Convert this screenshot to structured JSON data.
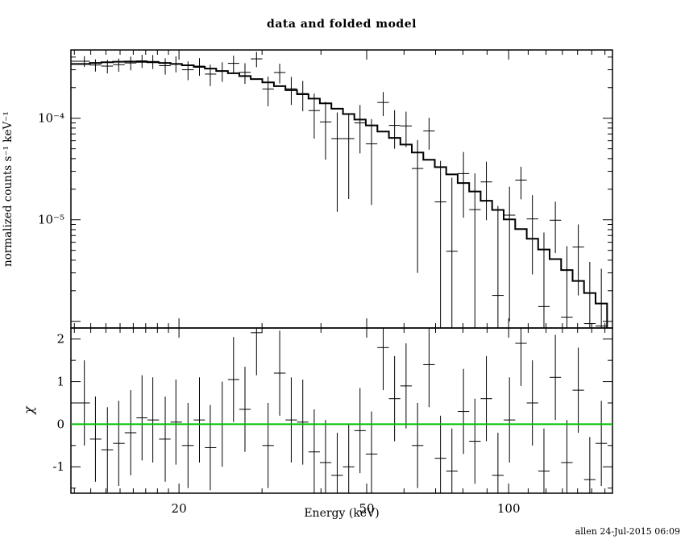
{
  "footer": "allen 24-Jul-2015 06:09",
  "chart_data": {
    "type": "scatter",
    "title": "data and folded model",
    "xlabel": "Energy (keV)",
    "x_scale": "log",
    "x_range": [
      11.8,
      166
    ],
    "x_ticks": {
      "major": [
        20,
        50,
        100
      ],
      "major_labels": [
        "20",
        "50",
        "100"
      ],
      "minor": [
        12,
        13,
        14,
        15,
        16,
        17,
        18,
        19,
        30,
        40,
        60,
        70,
        80,
        90,
        110,
        120,
        130,
        140,
        150,
        160
      ]
    },
    "top_panel": {
      "ylabel": "normalized counts s⁻¹ keV⁻¹",
      "y_scale": "log",
      "y_range": [
        8.6e-07,
        0.00047
      ],
      "y_major_ticks": [
        0.0001,
        1e-05,
        1e-06
      ],
      "y_tick_labels": [
        {
          "value": 0.0001,
          "label": "10⁻⁴"
        },
        {
          "value": 1e-05,
          "label": "10⁻⁵"
        }
      ],
      "energy": [
        12.6,
        13.3,
        14.1,
        14.9,
        15.8,
        16.7,
        17.6,
        18.7,
        19.7,
        20.9,
        22.1,
        23.3,
        24.7,
        26.1,
        27.6,
        29.2,
        30.9,
        32.7,
        34.6,
        36.6,
        38.7,
        40.9,
        43.3,
        45.8,
        48.4,
        51.2,
        54.2,
        57.3,
        60.6,
        64.1,
        67.8,
        71.7,
        75.8,
        80.2,
        84.8,
        89.7,
        94.9,
        100.4,
        106.2,
        112.3,
        118.8,
        125.6,
        132.9,
        140.5,
        148.6,
        157.2
      ],
      "rate": [
        0.000364,
        0.000334,
        0.000326,
        0.000337,
        0.00035,
        0.000367,
        0.000362,
        0.000329,
        0.000345,
        0.0003,
        0.000326,
        0.000272,
        0.000292,
        0.000347,
        0.000283,
        0.000384,
        0.000194,
        0.000282,
        0.000195,
        0.000175,
        0.000119,
        9.2e-05,
        6.3e-05,
        6.3e-05,
        9e-05,
        5.6e-05,
        0.000143,
        8.5e-05,
        8.4e-05,
        3.2e-05,
        7.5e-05,
        1.5e-05,
        4.9e-06,
        2.85e-05,
        1.26e-05,
        2.36e-05,
        1.8e-06,
        1.11e-05,
        2.46e-05,
        1.02e-05,
        1.4e-06,
        9.9e-06,
        1.1e-06,
        5.4e-06,
        9.5e-07,
        9e-07
      ],
      "rate_err": [
        4.4e-05,
        4.6e-05,
        5e-05,
        5e-05,
        5.4e-05,
        5.4e-05,
        5.7e-05,
        6e-05,
        6.2e-05,
        6.3e-05,
        6.4e-05,
        6.5e-05,
        6.4e-05,
        6.6e-05,
        6.5e-05,
        6.6e-05,
        6.3e-05,
        6.2e-05,
        6e-05,
        5.8e-05,
        5.6e-05,
        5.3e-05,
        5.1e-05,
        4.7e-05,
        4.5e-05,
        4.2e-05,
        3.8e-05,
        3.5e-05,
        3.2e-05,
        2.9e-05,
        2.6e-05,
        2.3e-05,
        2.1e-05,
        1.8e-05,
        1.6e-05,
        1.37e-05,
        1.19e-05,
        1.01e-05,
        8.7e-06,
        7.3e-06,
        6.1e-06,
        5.2e-06,
        4.4e-06,
        3.6e-06,
        2.9e-06,
        2.4e-06
      ],
      "model": [
        0.000342,
        0.00035,
        0.000356,
        0.00036,
        0.000361,
        0.000359,
        0.000356,
        0.00035,
        0.000342,
        0.000332,
        0.00032,
        0.000308,
        0.000292,
        0.000277,
        0.00026,
        0.000243,
        0.000225,
        0.000207,
        0.000189,
        0.000172,
        0.000156,
        0.00014,
        0.000124,
        0.00011,
        9.7e-05,
        8.5e-05,
        7.4e-05,
        6.4e-05,
        5.5e-05,
        4.6e-05,
        3.9e-05,
        3.3e-05,
        2.8e-05,
        2.3e-05,
        1.9e-05,
        1.54e-05,
        1.25e-05,
        1.01e-05,
        8.1e-06,
        6.5e-06,
        5.1e-06,
        4.1e-06,
        3.2e-06,
        2.5e-06,
        1.9e-06,
        1.5e-06
      ]
    },
    "bottom_panel": {
      "ylabel": "χ",
      "y_scale": "linear",
      "y_range": [
        -1.62,
        2.26
      ],
      "y_major_ticks": [
        -1,
        0,
        1,
        2
      ],
      "y_tick_labels": [
        {
          "value": -1,
          "label": "-1"
        },
        {
          "value": 0,
          "label": "0"
        },
        {
          "value": 1,
          "label": "1"
        },
        {
          "value": 2,
          "label": "2"
        }
      ],
      "y_minor_ticks": [
        -1.5,
        -0.5,
        0.5,
        1.5
      ],
      "chi": [
        0.5,
        -0.35,
        -0.6,
        -0.45,
        -0.2,
        0.15,
        0.1,
        -0.35,
        0.05,
        -0.5,
        0.1,
        -0.55,
        0.0,
        1.05,
        0.35,
        2.15,
        -0.5,
        1.2,
        0.1,
        0.05,
        -0.65,
        -0.9,
        -1.2,
        -1.0,
        -0.15,
        -0.7,
        1.8,
        0.6,
        0.9,
        -0.5,
        1.4,
        -0.8,
        -1.1,
        0.3,
        -0.4,
        0.6,
        -1.2,
        0.1,
        1.9,
        0.5,
        -1.1,
        1.1,
        -0.9,
        0.8,
        -1.3,
        -0.45
      ],
      "chi_err": 1
    },
    "colors": {
      "data": "#000000",
      "model": "#000000",
      "zero_line": "#00c000",
      "background": "#ffffff"
    },
    "legend": "none",
    "grid": false
  }
}
